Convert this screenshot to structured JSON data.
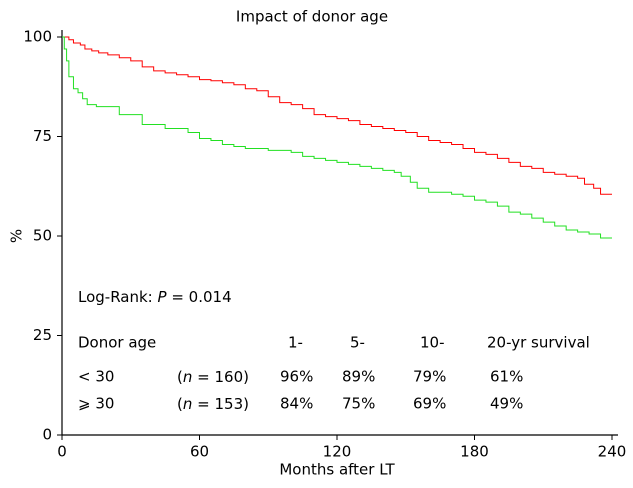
{
  "chart_data": {
    "type": "step",
    "title": "Impact of donor age",
    "xlabel": "Months after LT",
    "ylabel": "%",
    "xlim": [
      0,
      240
    ],
    "xticks": [
      0,
      60,
      120,
      180,
      240
    ],
    "ylim": [
      0,
      100
    ],
    "yticks": [
      0,
      25,
      50,
      75,
      100
    ],
    "series": [
      {
        "name": "< 30",
        "color": "#ff0000",
        "x": [
          0,
          3,
          5,
          8,
          10,
          13,
          16,
          20,
          25,
          30,
          35,
          40,
          45,
          50,
          55,
          60,
          65,
          70,
          75,
          80,
          85,
          90,
          95,
          100,
          105,
          110,
          115,
          120,
          125,
          130,
          135,
          140,
          145,
          150,
          155,
          160,
          165,
          170,
          175,
          180,
          185,
          190,
          195,
          200,
          205,
          210,
          215,
          220,
          225,
          228,
          232,
          235,
          240
        ],
        "values": [
          100,
          99.3,
          98.5,
          98,
          97,
          96.5,
          96,
          95.5,
          94.8,
          94,
          92.5,
          91.5,
          91,
          90.5,
          90,
          89.3,
          89,
          88.5,
          88,
          87,
          86.5,
          85,
          83.5,
          83,
          82,
          80.5,
          80,
          79.5,
          79,
          78,
          77.5,
          77,
          76.5,
          76,
          75,
          74,
          73.5,
          73,
          72,
          71,
          70.5,
          69.5,
          68.5,
          67.5,
          67,
          66,
          65.5,
          65,
          64.5,
          63,
          62,
          60.5,
          60.5
        ]
      },
      {
        "name": "⩾ 30",
        "color": "#22e022",
        "x": [
          0,
          1,
          2,
          3,
          5,
          7,
          9,
          11,
          15,
          25,
          35,
          45,
          55,
          60,
          65,
          70,
          75,
          80,
          90,
          100,
          105,
          110,
          115,
          120,
          125,
          130,
          135,
          140,
          145,
          148,
          152,
          155,
          160,
          170,
          175,
          180,
          185,
          190,
          195,
          200,
          205,
          210,
          215,
          220,
          225,
          230,
          235,
          240
        ],
        "values": [
          100,
          97,
          94,
          90,
          87,
          86,
          84.5,
          83,
          82.5,
          80.5,
          78,
          77,
          76,
          74.5,
          74,
          73,
          72.5,
          72,
          71.5,
          71,
          70,
          69.5,
          69,
          68.5,
          68,
          67.5,
          67,
          66.5,
          66,
          65,
          63.5,
          62,
          61,
          60.5,
          60,
          59,
          58.5,
          57.5,
          56,
          55.5,
          54.5,
          53.5,
          52.5,
          51.5,
          51,
          50.5,
          49.5,
          49.5
        ]
      }
    ],
    "annotations": {
      "log_rank": [
        "Log-Rank: ",
        "P",
        " = 0.014"
      ],
      "header": [
        "Donor age",
        "1-",
        "5-",
        "10-",
        "20-yr survival"
      ],
      "rows": [
        {
          "n": [
            "(",
            "n",
            " = 160)"
          ],
          "survival": [
            "96%",
            "89%",
            "79%",
            "61%"
          ]
        },
        {
          "n": [
            "(",
            "n",
            " = 153)"
          ],
          "survival": [
            "84%",
            "75%",
            "69%",
            "49%"
          ]
        }
      ]
    }
  }
}
